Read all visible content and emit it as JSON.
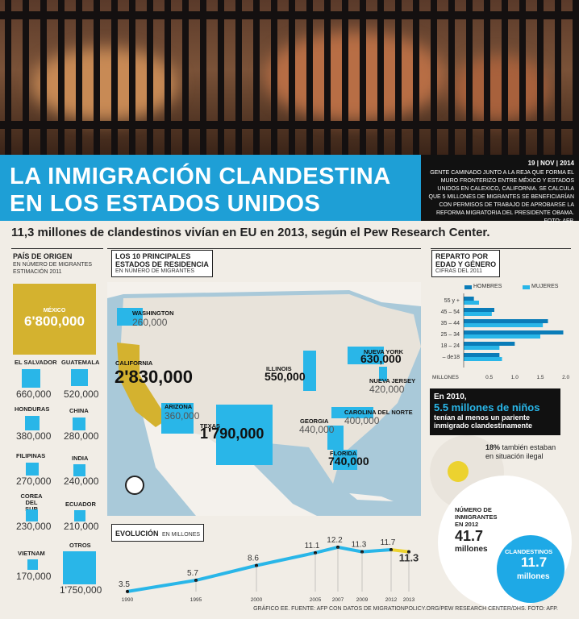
{
  "header": {
    "title_line1": "LA INMIGRACIÓN CLANDESTINA",
    "title_line2": "EN LOS ESTADOS UNIDOS",
    "date": "19 | NOV | 2014",
    "photo_caption": "GENTE CAMINADO JUNTO A LA REJA QUE FORMA EL MURO FRONTERIZO ENTRE MÉXICO Y ESTADOS UNIDOS EN CALEXICO, CALIFORNIA. SE CALCULA QUE 5 MILLONES DE MIGRANTES SE BENEFICIARÍAN CON PERMISOS DE TRABAJO DE APROBARSE LA REFORMA MIGRATORIA DEL PRESIDENTE OBAMA. FOTO: AFP.",
    "subtitle": "11,3 millones de clandestinos vivían en EU en 2013, según el Pew Research Center."
  },
  "origin": {
    "title": "PAÍS DE ORIGEN",
    "sub1": "EN NÚMERO DE MIGRANTES",
    "sub2": "ESTIMACIÓN 2011",
    "mexico_label": "MÉXICO",
    "mexico_value": "6'800,000",
    "countries": [
      {
        "name": "EL SALVADOR",
        "value": "660,000"
      },
      {
        "name": "GUATEMALA",
        "value": "520,000"
      },
      {
        "name": "HONDURAS",
        "value": "380,000"
      },
      {
        "name": "CHINA",
        "value": "280,000"
      },
      {
        "name": "FILIPINAS",
        "value": "270,000"
      },
      {
        "name": "INDIA",
        "value": "240,000"
      },
      {
        "name": "COREA DEL SUR",
        "value": "230,000"
      },
      {
        "name": "ECUADOR",
        "value": "210,000"
      },
      {
        "name": "VIETNAM",
        "value": "170,000"
      },
      {
        "name": "OTROS",
        "value": "1'750,000"
      }
    ]
  },
  "states": {
    "title1": "LOS 10 PRINCIPALES",
    "title2": "ESTADOS DE RESIDENCIA",
    "sub": "EN NÚMERO DE MIGRANTES",
    "items": [
      {
        "name": "WASHINGTON",
        "value": "260,000"
      },
      {
        "name": "CALIFORNIA",
        "value": "2'830,000"
      },
      {
        "name": "ARIZONA",
        "value": "360,000"
      },
      {
        "name": "TEXAS",
        "value": "1'790,000"
      },
      {
        "name": "ILLINOIS",
        "value": "550,000"
      },
      {
        "name": "NUEVA YORK",
        "value": "630,000"
      },
      {
        "name": "NUEVA JERSEY",
        "value": "420,000"
      },
      {
        "name": "CAROLINA DEL NORTE",
        "value": "400,000"
      },
      {
        "name": "GEORGIA",
        "value": "440,000"
      },
      {
        "name": "FLORIDA",
        "value": "740,000"
      }
    ]
  },
  "evolution": {
    "title": "EVOLUCIÓN",
    "unit": "EN MILLONES"
  },
  "age": {
    "title1": "REPARTO POR",
    "title2": "EDAD Y GÉNERO",
    "sub": "CIFRAS DEL 2011",
    "legend_men": "HOMBRES",
    "legend_women": "MUJERES",
    "axis_label": "MILLONES"
  },
  "children": {
    "line1": "En 2010,",
    "line2": "5.5 millones de niños",
    "line3": "tenían al menos un pariente",
    "line4": "inmigrado clandestinamente",
    "pct": "18%",
    "pct_text1": "también estaban",
    "pct_text2": "en situación ilegal"
  },
  "totals": {
    "label1": "NÚMERO DE",
    "label2": "INMIGRANTES",
    "label3": "EN 2012",
    "value": "41.7",
    "value_unit": "millones",
    "circle_label": "CLANDESTINOS",
    "circle_value": "11.7",
    "circle_unit": "millones"
  },
  "footer": "GRÁFICO EE. FUENTE: AFP CON DATOS DE MIGRATIONPOLICY.ORG/PEW RESEARCH CENTER/DHS. FOTO: AFP.",
  "colors": {
    "accent": "#29b6e8",
    "gold": "#d4b22f",
    "dark": "#111111"
  },
  "chart_data": [
    {
      "type": "line",
      "title": "EVOLUCIÓN EN MILLONES",
      "x": [
        "1990",
        "1995",
        "2000",
        "2005",
        "2007",
        "2009",
        "2012",
        "2013"
      ],
      "values": [
        3.5,
        5.7,
        8.6,
        11.1,
        12.2,
        11.3,
        11.7,
        11.3
      ],
      "labels": [
        "3.5",
        "5.7",
        "8.6",
        "11.1",
        "12.2",
        "11.3",
        "11.7",
        "11.3"
      ],
      "ylim": [
        0,
        14
      ]
    },
    {
      "type": "bar",
      "title": "REPARTO POR EDAD Y GÉNERO",
      "categories": [
        "55 y +",
        "45 – 54",
        "35 – 44",
        "25 – 34",
        "18 – 24",
        "– de18"
      ],
      "series": [
        {
          "name": "HOMBRES",
          "values": [
            0.2,
            0.6,
            1.65,
            1.95,
            1.0,
            0.7
          ]
        },
        {
          "name": "MUJERES",
          "values": [
            0.3,
            0.55,
            1.55,
            1.5,
            0.7,
            0.75
          ]
        }
      ],
      "xticks": [
        "0.5",
        "1.0",
        "1.5",
        "2.0"
      ],
      "xlim": [
        0,
        2.1
      ],
      "xlabel": "MILLONES"
    }
  ]
}
